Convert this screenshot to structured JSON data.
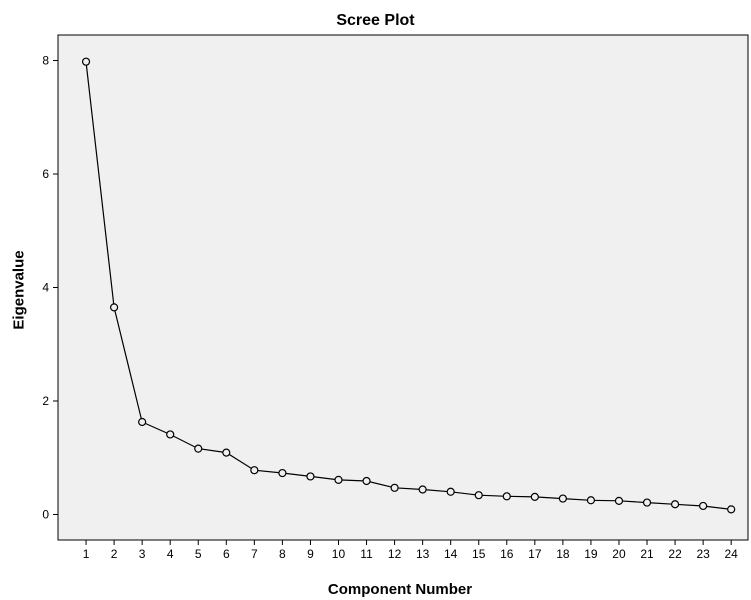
{
  "chart_data": {
    "type": "line",
    "title": "Scree Plot",
    "xlabel": "Component Number",
    "ylabel": "Eigenvalue",
    "categories": [
      1,
      2,
      3,
      4,
      5,
      6,
      7,
      8,
      9,
      10,
      11,
      12,
      13,
      14,
      15,
      16,
      17,
      18,
      19,
      20,
      21,
      22,
      23,
      24
    ],
    "x": [
      1,
      2,
      3,
      4,
      5,
      6,
      7,
      8,
      9,
      10,
      11,
      12,
      13,
      14,
      15,
      16,
      17,
      18,
      19,
      20,
      21,
      22,
      23,
      24
    ],
    "values": [
      7.98,
      3.65,
      1.63,
      1.41,
      1.16,
      1.09,
      0.78,
      0.73,
      0.67,
      0.61,
      0.59,
      0.47,
      0.44,
      0.4,
      0.34,
      0.32,
      0.31,
      0.28,
      0.25,
      0.24,
      0.21,
      0.18,
      0.15,
      0.09
    ],
    "y_ticks": [
      0,
      2,
      4,
      6,
      8
    ],
    "xlim": [
      0,
      24.6
    ],
    "ylim": [
      -0.45,
      8.45
    ],
    "grid": false,
    "legend": "none",
    "marker": "open-circle",
    "colors": {
      "plot_background": "#f0f0f0",
      "line": "#000000",
      "marker_fill": "#f0f0f0",
      "axis": "#000000"
    }
  }
}
